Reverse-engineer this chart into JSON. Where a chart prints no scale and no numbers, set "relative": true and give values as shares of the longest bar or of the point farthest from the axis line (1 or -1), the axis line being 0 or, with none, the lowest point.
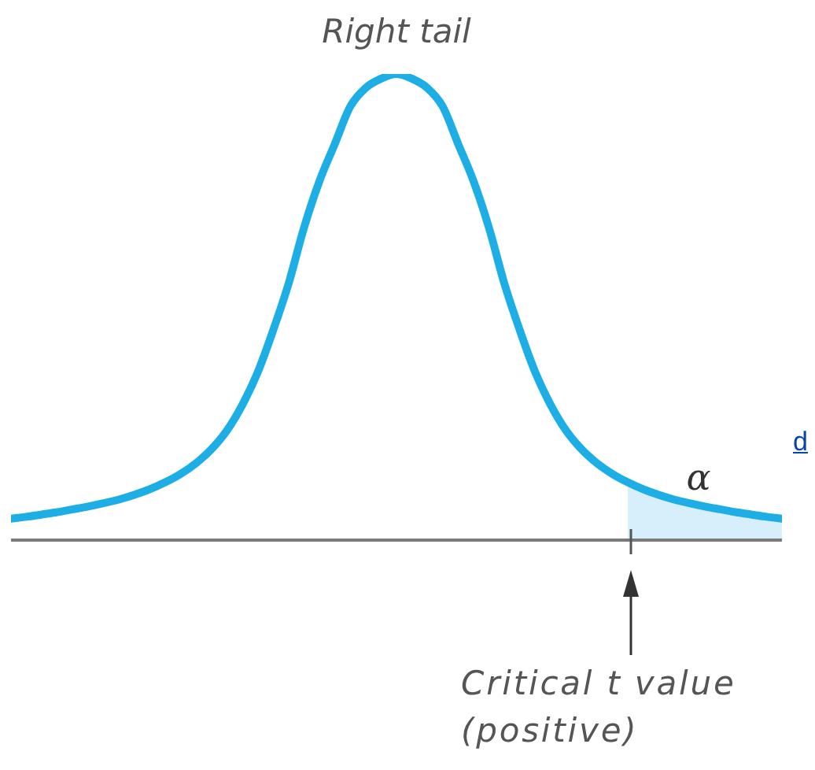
{
  "chart_data": {
    "type": "line",
    "title": "Right tail",
    "relative": true,
    "categories": [
      null,
      null,
      null,
      null,
      null,
      null,
      null,
      null,
      null,
      null,
      null,
      null,
      null,
      null,
      null,
      null,
      null,
      null,
      null,
      null,
      null,
      null,
      null,
      null,
      null,
      null,
      null,
      null,
      null,
      null,
      null,
      null,
      null,
      null,
      null,
      null,
      null,
      null,
      null,
      null,
      null,
      null,
      null,
      null,
      null,
      null,
      null,
      null,
      null,
      null,
      null
    ],
    "series": [
      {
        "color": "#1eaee6",
        "values": [
          0.046,
          0.05,
          0.055,
          0.06,
          0.066,
          0.072,
          0.079,
          0.087,
          0.097,
          0.109,
          0.124,
          0.142,
          0.165,
          0.195,
          0.235,
          0.29,
          0.36,
          0.45,
          0.55,
          0.67,
          0.77,
          0.85,
          0.93,
          0.97,
          0.99,
          1,
          0.99,
          0.97,
          0.93,
          0.85,
          0.77,
          0.67,
          0.55,
          0.45,
          0.36,
          0.29,
          0.235,
          0.195,
          0.165,
          0.142,
          0.124,
          0.109,
          0.097,
          0.087,
          0.079,
          0.072,
          0.066,
          0.06,
          0.055,
          0.05,
          0.046
        ]
      },
      {
        "type": "area",
        "color": "#d6effa",
        "values": [
          null,
          null,
          null,
          null,
          null,
          null,
          null,
          null,
          null,
          null,
          null,
          null,
          null,
          null,
          null,
          null,
          null,
          null,
          null,
          null,
          null,
          null,
          null,
          null,
          null,
          null,
          null,
          null,
          null,
          null,
          null,
          null,
          null,
          null,
          null,
          null,
          null,
          null,
          null,
          null,
          0.124,
          0.109,
          0.097,
          0.087,
          0.079,
          0.072,
          0.066,
          0.06,
          0.055,
          0.05,
          0.046
        ]
      }
    ],
    "annotations": [
      "α",
      "Critical t value (positive)",
      "d"
    ]
  }
}
